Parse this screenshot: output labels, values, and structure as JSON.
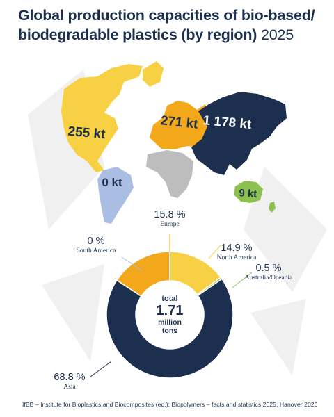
{
  "title": "Global production capacities of bio-based/ biodegradable plastics (by region)",
  "title_year": "2025",
  "footer": "IfBB – Institute for Bioplastics and Biocomposites (ed.): Biopolymers – facts and statistics 2025, Hanover 2026",
  "colors": {
    "north_america": "#f7d143",
    "south_america": "#a9bee2",
    "europe": "#f3a81b",
    "africa": "#bdbdbd",
    "asia": "#1c2f4e",
    "australia_oceania": "#8dc14f",
    "text": "#1c2f4e"
  },
  "map_labels": {
    "north_america": "255 kt",
    "south_america": "0 kt",
    "europe": "271 kt",
    "asia": "1 178 kt",
    "australia_oceania": "9 kt"
  },
  "center": {
    "line1": "total",
    "value": "1.71",
    "line3": "million",
    "line4": "tons"
  },
  "chart_data": {
    "type": "pie",
    "title": "Global production capacities of bio-based/ biodegradable plastics (by region)",
    "categories": [
      "Europe",
      "North America",
      "Australia/Oceania",
      "Asia",
      "South America"
    ],
    "values": [
      15.8,
      14.9,
      0.5,
      68.8,
      0
    ],
    "unit": "%",
    "value_labels": [
      "15.8 %",
      "14.9 %",
      "0.5 %",
      "68.8 %",
      "0 %"
    ],
    "total": "1.71 million tons"
  }
}
